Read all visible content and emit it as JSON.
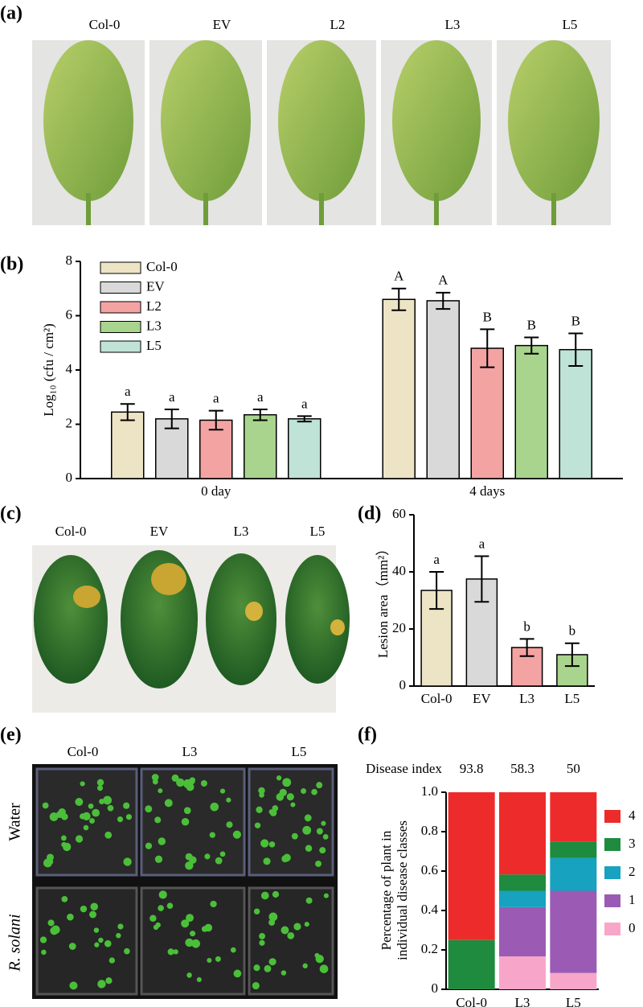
{
  "panels": [
    "(a)",
    "(b)",
    "(c)",
    "(d)",
    "(e)",
    "(f)"
  ],
  "photo_a": {
    "labels": [
      "Col-0",
      "EV",
      "L2",
      "L3",
      "L5"
    ]
  },
  "photo_c": {
    "labels": [
      "Col-0",
      "EV",
      "L3",
      "L5"
    ]
  },
  "photo_e": {
    "columns": [
      "Col-0",
      "L3",
      "L5"
    ],
    "rows": [
      "Water",
      "R. solani"
    ]
  },
  "chart_data": [
    {
      "type": "bar",
      "ylabel": "Log₁₀ (cfu / cm²)",
      "categories": [
        "0 day",
        "4 days"
      ],
      "series": [
        {
          "name": "Col-0",
          "color": "#ede4c6",
          "values": [
            2.45,
            6.6
          ],
          "errors": [
            0.3,
            0.4
          ],
          "letters": [
            "a",
            "A"
          ]
        },
        {
          "name": "EV",
          "color": "#d9d9d9",
          "values": [
            2.2,
            6.55
          ],
          "errors": [
            0.35,
            0.3
          ],
          "letters": [
            "a",
            "A"
          ]
        },
        {
          "name": "L2",
          "color": "#f4a3a3",
          "values": [
            2.15,
            4.8
          ],
          "errors": [
            0.35,
            0.7
          ],
          "letters": [
            "a",
            "B"
          ]
        },
        {
          "name": "L3",
          "color": "#a9d48e",
          "values": [
            2.35,
            4.9
          ],
          "errors": [
            0.2,
            0.3
          ],
          "letters": [
            "a",
            "B"
          ]
        },
        {
          "name": "L5",
          "color": "#bfe3d6",
          "values": [
            2.2,
            4.75
          ],
          "errors": [
            0.1,
            0.6
          ],
          "letters": [
            "a",
            "B"
          ]
        }
      ],
      "ylim": [
        0,
        8
      ],
      "yticks": [
        0,
        2,
        4,
        6,
        8
      ],
      "legend": "top-left"
    },
    {
      "type": "bar",
      "ylabel": "Lesion area（mm²）",
      "categories": [
        "Col-0",
        "EV",
        "L3",
        "L5"
      ],
      "values": [
        33.5,
        37.5,
        13.5,
        11
      ],
      "errors": [
        6.5,
        8,
        3,
        4
      ],
      "letters": [
        "a",
        "a",
        "b",
        "b"
      ],
      "colors": [
        "#ede4c6",
        "#d9d9d9",
        "#f4a3a3",
        "#a9d48e"
      ],
      "ylim": [
        0,
        60
      ],
      "yticks": [
        0,
        20,
        40,
        60
      ]
    },
    {
      "type": "stacked_bar",
      "ylabel": [
        "Percentage of plant in",
        "individual disease classes"
      ],
      "categories": [
        "Col-0",
        "L3",
        "L5"
      ],
      "disease_index": {
        "label": "Disease index",
        "values": [
          93.8,
          58.3,
          50
        ]
      },
      "series": [
        {
          "name": "0",
          "color": "#f7a6c9",
          "values": [
            0,
            0.167,
            0.083
          ]
        },
        {
          "name": "1",
          "color": "#9b5bb5",
          "values": [
            0,
            0.25,
            0.417
          ]
        },
        {
          "name": "2",
          "color": "#17a2bf",
          "values": [
            0,
            0.083,
            0.167
          ]
        },
        {
          "name": "3",
          "color": "#1e8b3e",
          "values": [
            0.25,
            0.083,
            0.083
          ]
        },
        {
          "name": "4",
          "color": "#ee2b2b",
          "values": [
            0.75,
            0.417,
            0.25
          ]
        }
      ],
      "ylim": [
        0,
        1
      ],
      "yticks": [
        0,
        0.2,
        0.4,
        0.6,
        0.8,
        {
          "value": 1,
          "label": "1.0"
        }
      ],
      "legend": "right"
    }
  ]
}
